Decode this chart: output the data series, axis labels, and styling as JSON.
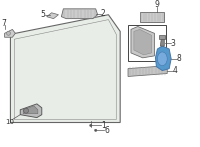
{
  "bg_color": "#ffffff",
  "labels": [
    {
      "text": "1",
      "fontsize": 5.5,
      "color": "#333333"
    },
    {
      "text": "2",
      "fontsize": 5.5,
      "color": "#333333"
    },
    {
      "text": "3",
      "fontsize": 5.5,
      "color": "#333333"
    },
    {
      "text": "4",
      "fontsize": 5.5,
      "color": "#333333"
    },
    {
      "text": "5",
      "fontsize": 5.5,
      "color": "#333333"
    },
    {
      "text": "6",
      "fontsize": 5.5,
      "color": "#333333"
    },
    {
      "text": "7",
      "fontsize": 5.5,
      "color": "#333333"
    },
    {
      "text": "8",
      "fontsize": 5.5,
      "color": "#333333"
    },
    {
      "text": "9",
      "fontsize": 5.5,
      "color": "#333333"
    },
    {
      "text": "10",
      "fontsize": 5.0,
      "color": "#333333"
    }
  ],
  "windshield_face": "#e8ede8",
  "windshield_edge": "#666666",
  "inner_edge": "#888888",
  "sensor_blue": "#5599cc",
  "sensor_blue2": "#4477aa",
  "part_face": "#cccccc",
  "part_edge": "#666666"
}
